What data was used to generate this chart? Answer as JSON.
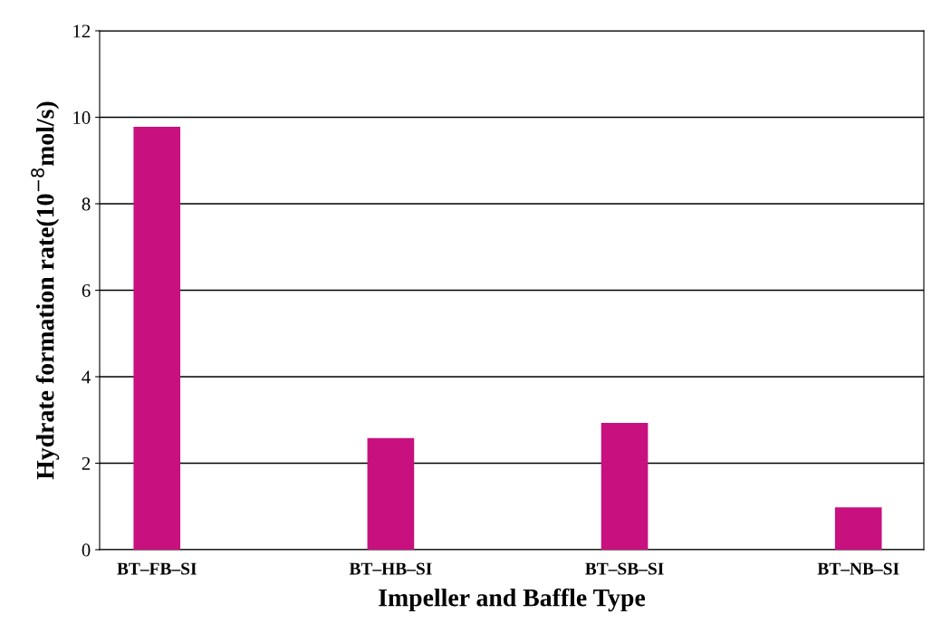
{
  "chart_data": {
    "type": "bar",
    "xlabel": "Impeller and Baffle Type",
    "ylabel": "Hydrate formation rate(10$^{−8}$mol/s)",
    "categories": [
      "BT–FB–SI",
      "BT–HB–SI",
      "BT–SB–SI",
      "BT–NB–SI"
    ],
    "values": [
      9.78,
      2.58,
      2.93,
      0.98
    ],
    "color": "#c8107f",
    "ylim": [
      0,
      12
    ],
    "yticks": [
      0,
      2,
      4,
      6,
      8,
      10,
      12
    ],
    "grid": "y"
  }
}
